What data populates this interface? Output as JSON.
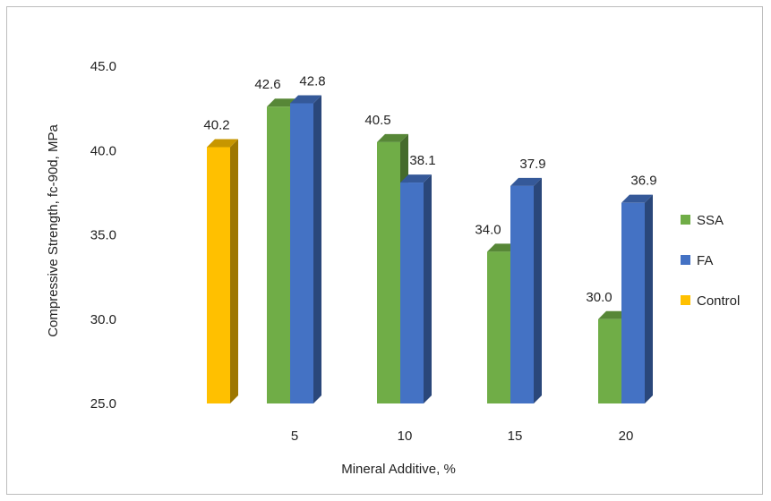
{
  "chart_data": {
    "type": "bar",
    "title": "",
    "xlabel": "Mineral Additive, %",
    "ylabel": "Compressive Strength, fc-90d, MPa",
    "ylim": [
      25,
      45
    ],
    "yticks": [
      "25.0",
      "30.0",
      "35.0",
      "40.0",
      "45.0"
    ],
    "categories": [
      "",
      "5",
      "10",
      "15",
      "20"
    ],
    "series": [
      {
        "name": "SSA",
        "color": "#70ad47",
        "values": [
          null,
          42.6,
          40.5,
          34.0,
          30.0
        ],
        "labels": [
          null,
          "42.6",
          "40.5",
          "34.0",
          "30.0"
        ]
      },
      {
        "name": "FA",
        "color": "#4472c4",
        "values": [
          null,
          42.8,
          38.1,
          37.9,
          36.9
        ],
        "labels": [
          null,
          "42.8",
          "38.1",
          "37.9",
          "36.9"
        ]
      },
      {
        "name": "Control",
        "color": "#ffc000",
        "values": [
          40.2,
          null,
          null,
          null,
          null
        ],
        "labels": [
          "40.2",
          null,
          null,
          null,
          null
        ]
      }
    ],
    "legend_position": "right",
    "grid": false
  }
}
